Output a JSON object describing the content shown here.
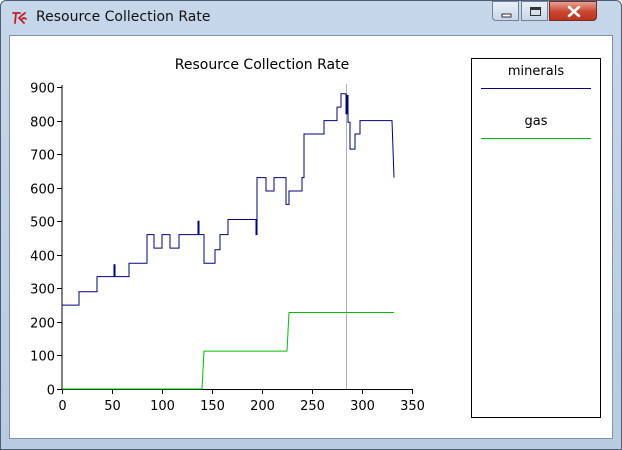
{
  "window": {
    "title": "Resource Collection Rate",
    "icon": "tk-feather-icon"
  },
  "controls": {
    "minimize": "minimize-icon",
    "maximize": "maximize-icon",
    "close": "close-icon"
  },
  "colors": {
    "minerals": "#000080",
    "gas": "#00c000",
    "cursor_line": "#b0b0b0"
  },
  "chart_data": {
    "type": "line",
    "title": "Resource Collection Rate",
    "xlabel": "",
    "ylabel": "",
    "xlim": [
      0,
      350
    ],
    "ylim": [
      0,
      900
    ],
    "x_ticks": [
      0,
      50,
      100,
      150,
      200,
      250,
      300,
      350
    ],
    "y_ticks": [
      0,
      100,
      200,
      300,
      400,
      500,
      600,
      700,
      800,
      900
    ],
    "grid": false,
    "legend_position": "right",
    "cursor_x": 284,
    "series": [
      {
        "name": "minerals",
        "color": "#000080",
        "points": [
          [
            0,
            250
          ],
          [
            17,
            250
          ],
          [
            17,
            290
          ],
          [
            35,
            290
          ],
          [
            35,
            335
          ],
          [
            52,
            335
          ],
          [
            52,
            370
          ],
          [
            53,
            370
          ],
          [
            53,
            335
          ],
          [
            67,
            335
          ],
          [
            67,
            375
          ],
          [
            85,
            375
          ],
          [
            85,
            460
          ],
          [
            92,
            460
          ],
          [
            92,
            420
          ],
          [
            100,
            420
          ],
          [
            100,
            460
          ],
          [
            108,
            460
          ],
          [
            108,
            420
          ],
          [
            117,
            420
          ],
          [
            117,
            460
          ],
          [
            136,
            460
          ],
          [
            136,
            500
          ],
          [
            137,
            500
          ],
          [
            137,
            460
          ],
          [
            142,
            460
          ],
          [
            142,
            375
          ],
          [
            153,
            375
          ],
          [
            153,
            415
          ],
          [
            158,
            415
          ],
          [
            158,
            460
          ],
          [
            166,
            460
          ],
          [
            166,
            505
          ],
          [
            194,
            505
          ],
          [
            194,
            460
          ],
          [
            195,
            460
          ],
          [
            195,
            630
          ],
          [
            204,
            630
          ],
          [
            204,
            590
          ],
          [
            212,
            590
          ],
          [
            212,
            630
          ],
          [
            224,
            630
          ],
          [
            224,
            550
          ],
          [
            227,
            550
          ],
          [
            227,
            590
          ],
          [
            240,
            590
          ],
          [
            240,
            630
          ],
          [
            242,
            630
          ],
          [
            242,
            760
          ],
          [
            262,
            760
          ],
          [
            262,
            800
          ],
          [
            275,
            800
          ],
          [
            275,
            840
          ],
          [
            279,
            840
          ],
          [
            279,
            880
          ],
          [
            284,
            880
          ],
          [
            284,
            820
          ],
          [
            285,
            820
          ],
          [
            285,
            875
          ],
          [
            286,
            875
          ],
          [
            286,
            795
          ],
          [
            288,
            795
          ],
          [
            288,
            715
          ],
          [
            293,
            715
          ],
          [
            293,
            760
          ],
          [
            298,
            760
          ],
          [
            298,
            800
          ],
          [
            330,
            800
          ],
          [
            332,
            630
          ]
        ]
      },
      {
        "name": "gas",
        "color": "#00c000",
        "points": [
          [
            0,
            0
          ],
          [
            140,
            0
          ],
          [
            142,
            113
          ],
          [
            225,
            113
          ],
          [
            227,
            228
          ],
          [
            332,
            228
          ]
        ]
      }
    ]
  }
}
